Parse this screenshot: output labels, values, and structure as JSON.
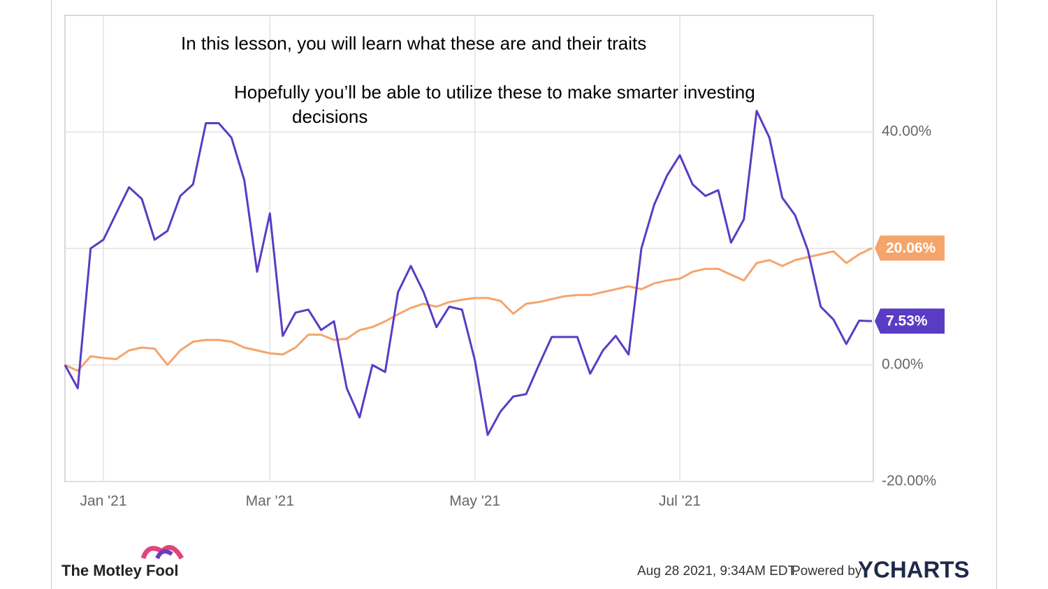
{
  "chart_data": {
    "type": "line",
    "categories": [
      null,
      null,
      null,
      "Jan '21",
      null,
      null,
      null,
      null,
      null,
      null,
      null,
      null,
      null,
      null,
      null,
      null,
      "Mar '21",
      null,
      null,
      null,
      null,
      null,
      null,
      null,
      null,
      null,
      null,
      null,
      null,
      null,
      null,
      null,
      "May '21",
      null,
      null,
      null,
      null,
      null,
      null,
      null,
      null,
      null,
      null,
      null,
      null,
      null,
      null,
      null,
      "Jul '21",
      null,
      null,
      null,
      null,
      null,
      null,
      null,
      null,
      null,
      null,
      null,
      null,
      null,
      null,
      null
    ],
    "series": [
      {
        "color": "#f4a56c",
        "end_label": "20.06%",
        "values": [
          0,
          -1,
          1.5,
          1.2,
          1,
          2.5,
          3,
          2.8,
          0,
          2.5,
          4,
          4.3,
          4.3,
          4,
          3,
          2.5,
          2,
          1.8,
          3,
          5.2,
          5.2,
          4.3,
          4.5,
          6,
          6.5,
          7.5,
          8.7,
          9.8,
          10.5,
          10,
          10.8,
          11.2,
          11.5,
          11.5,
          11,
          8.8,
          10.5,
          10.8,
          11.3,
          11.8,
          12,
          12,
          12.5,
          13,
          13.5,
          13,
          14,
          14.5,
          14.8,
          16,
          16.5,
          16.5,
          15.5,
          14.5,
          17.5,
          18,
          17,
          18,
          18.5,
          19,
          19.5,
          17.5,
          19,
          20.06
        ]
      },
      {
        "color": "#5a3cc4",
        "end_label": "7.53%",
        "values": [
          0,
          -4,
          20,
          21.5,
          26,
          30.5,
          28.5,
          21.5,
          23,
          29,
          31,
          41.5,
          41.5,
          39,
          31.7,
          16,
          26,
          5,
          9,
          9.5,
          6,
          7.5,
          -4,
          -9,
          0,
          -1.2,
          12.5,
          17,
          12.5,
          6.5,
          10,
          9.5,
          0.8,
          -12,
          -8,
          -5.4,
          -5,
          0,
          4.8,
          4.8,
          4.8,
          -1.5,
          2.5,
          5,
          1.8,
          20,
          27.5,
          32.5,
          36,
          31,
          29,
          30,
          21,
          25,
          43.6,
          39,
          28.7,
          25.7,
          19.7,
          10,
          7.8,
          3.6,
          7.6,
          7.53
        ]
      }
    ],
    "ylim": [
      -20,
      60
    ],
    "yticks": [
      {
        "value": -20,
        "label": "-20.00%"
      },
      {
        "value": 0,
        "label": "0.00%"
      },
      {
        "value": 20,
        "label": "20.00%"
      },
      {
        "value": 40,
        "label": "40.00%"
      }
    ],
    "grid": true
  },
  "slide_text": [
    "In this lesson, you will learn what these are and their traits",
    "Hopefully you’ll be able to utilize these to make smarter investing decisions"
  ],
  "footer": {
    "brand": "The Motley Fool",
    "timestamp": "Aug 28 2021, 9:34AM EDT.",
    "powered_by": "Powered by",
    "provider": "YCHARTS"
  }
}
